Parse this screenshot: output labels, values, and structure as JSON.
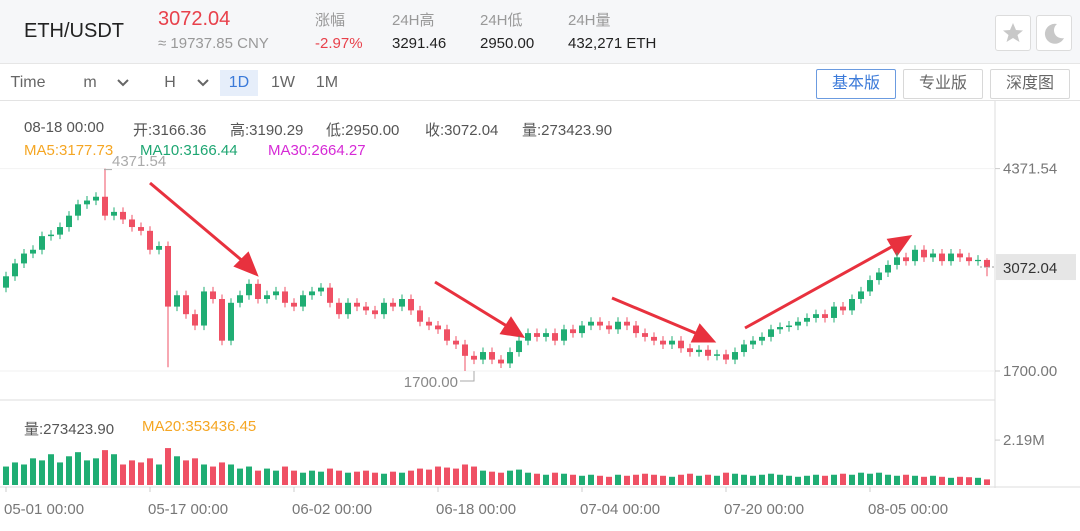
{
  "header": {
    "pair": "ETH/USDT",
    "price": "3072.04",
    "price_cny": "≈ 19737.85 CNY",
    "stats": [
      {
        "label": "涨幅",
        "value": "-2.97%"
      },
      {
        "label": "24H高",
        "value": "3291.46"
      },
      {
        "label": "24H低",
        "value": "2950.00"
      },
      {
        "label": "24H量",
        "value": "432,271 ETH"
      }
    ]
  },
  "toolbar": {
    "intervals": [
      "Time",
      "m",
      "H",
      "1D",
      "1W",
      "1M"
    ],
    "views": [
      "基本版",
      "专业版",
      "深度图"
    ]
  },
  "chart_data": {
    "type": "candlestick",
    "info": [
      "08-18 00:00",
      "开:3166.36",
      "高:3190.29",
      "低:2950.00",
      "收:3072.04",
      "量:273423.90"
    ],
    "ma_legend": [
      {
        "name": "MA5:3177.73",
        "color": "#f5a623"
      },
      {
        "name": "MA10:3166.44",
        "color": "#1ea672"
      },
      {
        "name": "MA30:2664.27",
        "color": "#d62ad6"
      }
    ],
    "categories": [
      "05-01 00:00",
      null,
      null,
      null,
      null,
      null,
      null,
      null,
      null,
      null,
      null,
      null,
      null,
      null,
      null,
      null,
      "05-17 00:00",
      null,
      null,
      null,
      null,
      null,
      null,
      null,
      null,
      null,
      null,
      null,
      null,
      null,
      null,
      null,
      "06-02 00:00",
      null,
      null,
      null,
      null,
      null,
      null,
      null,
      null,
      null,
      null,
      null,
      null,
      null,
      null,
      null,
      "06-18 00:00",
      null,
      null,
      null,
      null,
      null,
      null,
      null,
      null,
      null,
      null,
      null,
      null,
      null,
      null,
      null,
      "07-04 00:00",
      null,
      null,
      null,
      null,
      null,
      null,
      null,
      null,
      null,
      null,
      null,
      null,
      null,
      null,
      null,
      "07-20 00:00",
      null,
      null,
      null,
      null,
      null,
      null,
      null,
      null,
      null,
      null,
      null,
      null,
      null,
      null,
      null,
      "08-05 00:00",
      null,
      null,
      null,
      null,
      null,
      null,
      null,
      null,
      null,
      null,
      null,
      null,
      null
    ],
    "open": [
      2800,
      2950,
      3120,
      3250,
      3300,
      3480,
      3500,
      3600,
      3750,
      3900,
      3950,
      4000,
      3750,
      3800,
      3700,
      3600,
      3550,
      3300,
      3350,
      2550,
      2700,
      2450,
      2300,
      2750,
      2650,
      2100,
      2600,
      2700,
      2850,
      2650,
      2700,
      2750,
      2600,
      2550,
      2700,
      2750,
      2800,
      2600,
      2450,
      2600,
      2550,
      2500,
      2450,
      2600,
      2550,
      2650,
      2500,
      2350,
      2300,
      2250,
      2100,
      2050,
      1900,
      1850,
      1950,
      1850,
      1800,
      1950,
      2100,
      2200,
      2150,
      2200,
      2100,
      2250,
      2200,
      2300,
      2350,
      2300,
      2250,
      2350,
      2300,
      2200,
      2150,
      2100,
      2050,
      2100,
      2000,
      1950,
      1980,
      1900,
      1920,
      1850,
      1950,
      2050,
      2100,
      2150,
      2250,
      2280,
      2300,
      2350,
      2400,
      2450,
      2400,
      2550,
      2500,
      2650,
      2750,
      2900,
      3000,
      3100,
      3200,
      3150,
      3300,
      3200,
      3250,
      3150,
      3250,
      3200,
      3150,
      3166.36
    ],
    "high": [
      3010,
      3180,
      3310,
      3360,
      3540,
      3560,
      3660,
      3810,
      3960,
      4010,
      4060,
      4371.54,
      3860,
      3860,
      3760,
      3660,
      3610,
      3410,
      3410,
      2760,
      2760,
      2510,
      2810,
      2810,
      2710,
      2660,
      2760,
      2910,
      2910,
      2760,
      2810,
      2810,
      2660,
      2760,
      2810,
      2860,
      2860,
      2660,
      2660,
      2660,
      2610,
      2560,
      2660,
      2660,
      2710,
      2710,
      2560,
      2410,
      2360,
      2310,
      2160,
      2110,
      1960,
      2010,
      2010,
      1910,
      2010,
      2160,
      2260,
      2260,
      2260,
      2260,
      2310,
      2310,
      2360,
      2410,
      2410,
      2360,
      2410,
      2410,
      2360,
      2260,
      2210,
      2160,
      2160,
      2160,
      2060,
      2040,
      2040,
      1980,
      1980,
      2010,
      2110,
      2160,
      2210,
      2310,
      2340,
      2360,
      2410,
      2460,
      2510,
      2510,
      2610,
      2610,
      2710,
      2810,
      2960,
      3060,
      3160,
      3260,
      3260,
      3360,
      3360,
      3310,
      3310,
      3310,
      3310,
      3260,
      3230,
      3190.29
    ],
    "low": [
      2740,
      2890,
      3060,
      3190,
      3240,
      3420,
      3440,
      3540,
      3690,
      3840,
      3890,
      3690,
      3690,
      3640,
      3540,
      3490,
      3240,
      3240,
      1750,
      2490,
      2390,
      2240,
      2240,
      2590,
      2040,
      2040,
      2540,
      2640,
      2590,
      2590,
      2640,
      2540,
      2490,
      2490,
      2640,
      2690,
      2540,
      2390,
      2390,
      2490,
      2440,
      2390,
      2390,
      2490,
      2490,
      2440,
      2290,
      2240,
      2190,
      2040,
      1990,
      1700,
      1790,
      1790,
      1790,
      1740,
      1740,
      1890,
      2040,
      2090,
      2090,
      2040,
      2040,
      2140,
      2140,
      2240,
      2240,
      2190,
      2190,
      2240,
      2140,
      2090,
      2040,
      1990,
      1990,
      1940,
      1890,
      1890,
      1840,
      1840,
      1790,
      1790,
      1890,
      1990,
      2040,
      2090,
      2190,
      2220,
      2240,
      2290,
      2340,
      2340,
      2340,
      2440,
      2440,
      2590,
      2690,
      2840,
      2940,
      3040,
      3090,
      3090,
      3140,
      3140,
      3090,
      3090,
      3140,
      3090,
      3090,
      2950
    ],
    "close": [
      2950,
      3120,
      3250,
      3300,
      3480,
      3500,
      3600,
      3750,
      3900,
      3950,
      4000,
      3750,
      3800,
      3700,
      3600,
      3550,
      3300,
      3350,
      2550,
      2700,
      2450,
      2300,
      2750,
      2650,
      2100,
      2600,
      2700,
      2850,
      2650,
      2700,
      2750,
      2600,
      2550,
      2700,
      2750,
      2800,
      2600,
      2450,
      2600,
      2550,
      2500,
      2450,
      2600,
      2550,
      2650,
      2500,
      2350,
      2300,
      2250,
      2100,
      2050,
      1900,
      1850,
      1950,
      1850,
      1800,
      1950,
      2100,
      2200,
      2150,
      2200,
      2100,
      2250,
      2200,
      2300,
      2350,
      2300,
      2250,
      2350,
      2300,
      2200,
      2150,
      2100,
      2050,
      2100,
      2000,
      1950,
      1980,
      1900,
      1920,
      1850,
      1950,
      2050,
      2100,
      2150,
      2250,
      2280,
      2300,
      2350,
      2400,
      2450,
      2400,
      2550,
      2500,
      2650,
      2750,
      2900,
      3000,
      3100,
      3200,
      3150,
      3300,
      3200,
      3250,
      3150,
      3250,
      3200,
      3150,
      3166.36,
      3072.04
    ],
    "up_color": "#1fad73",
    "down_color": "#ef5064",
    "ylim": [
      1383,
      5145
    ],
    "yticks": [
      4371.54,
      {
        "value": 1700,
        "label": "1700.00"
      }
    ],
    "price_tag": 3072.04,
    "max_label": "4371.54",
    "min_label": "1700.00",
    "volume": {
      "legend": [
        {
          "name": "量:273423.90",
          "color": "#555"
        },
        {
          "name": "MA20:353436.45",
          "color": "#f5a623"
        }
      ],
      "values": [
        900000,
        1100000,
        1000000,
        1300000,
        1200000,
        1500000,
        1100000,
        1400000,
        1600000,
        1200000,
        1300000,
        1700000,
        1500000,
        1000000,
        1200000,
        1100000,
        1300000,
        1000000,
        1800000,
        1400000,
        1200000,
        1300000,
        1000000,
        900000,
        1100000,
        1000000,
        800000,
        900000,
        700000,
        800000,
        700000,
        900000,
        700000,
        600000,
        700000,
        650000,
        800000,
        700000,
        600000,
        650000,
        700000,
        600000,
        550000,
        650000,
        600000,
        700000,
        800000,
        750000,
        900000,
        850000,
        800000,
        1000000,
        900000,
        700000,
        650000,
        600000,
        700000,
        750000,
        600000,
        550000,
        500000,
        600000,
        550000,
        500000,
        450000,
        500000,
        450000,
        400000,
        500000,
        450000,
        500000,
        550000,
        500000,
        450000,
        400000,
        500000,
        550000,
        450000,
        500000,
        450000,
        600000,
        550000,
        500000,
        450000,
        500000,
        550000,
        500000,
        450000,
        400000,
        450000,
        500000,
        450000,
        500000,
        550000,
        500000,
        600000,
        550000,
        600000,
        500000,
        450000,
        500000,
        450000,
        400000,
        450000,
        400000,
        350000,
        400000,
        380000,
        350000,
        273423.9
      ],
      "ylim": [
        0,
        3900000
      ],
      "yticks": [
        {
          "value": 2190000,
          "label": "2.19M"
        }
      ]
    }
  }
}
